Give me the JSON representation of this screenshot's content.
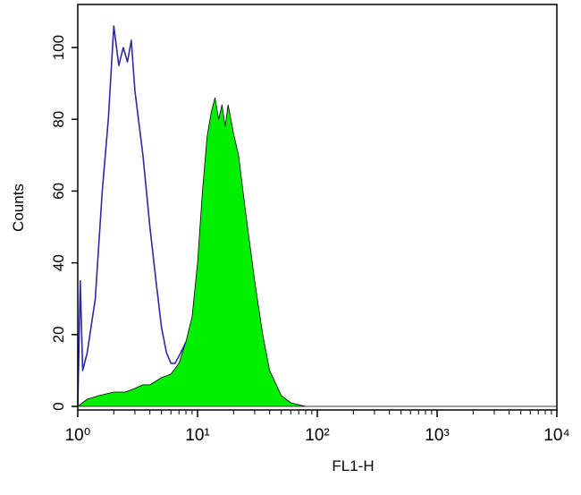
{
  "chart_data": {
    "type": "area",
    "x_label": "FL1-H",
    "y_label": "Counts",
    "log_x": true,
    "xlim": [
      1,
      10000
    ],
    "xticks": [
      {
        "value": 1,
        "label": "10⁰"
      },
      {
        "value": 10,
        "label": "10¹"
      },
      {
        "value": 100,
        "label": "10²"
      },
      {
        "value": 1000,
        "label": "10³"
      },
      {
        "value": 10000,
        "label": "10⁴"
      }
    ],
    "ylim": [
      -1,
      112
    ],
    "yticks": [
      0,
      20,
      40,
      60,
      80,
      100
    ],
    "series": [
      {
        "color": "#2b2ba6",
        "fill": false,
        "x": [
          1,
          1.05,
          1.1,
          1.2,
          1.4,
          1.6,
          1.8,
          2.0,
          2.2,
          2.4,
          2.6,
          2.8,
          3.0,
          3.5,
          4.0,
          4.5,
          5.0,
          5.5,
          6.0,
          6.5,
          7,
          7.5,
          8
        ],
        "values": [
          0,
          35,
          10,
          15,
          30,
          60,
          80,
          106,
          95,
          100,
          96,
          102,
          88,
          70,
          50,
          35,
          22,
          15,
          12,
          12,
          14,
          16,
          18
        ]
      },
      {
        "color": "#00ee00",
        "fill": true,
        "x": [
          1,
          1.2,
          1.5,
          2,
          2.5,
          3,
          3.5,
          4,
          5,
          6,
          7,
          8,
          9,
          10,
          11,
          12,
          13,
          14,
          15,
          16,
          17,
          18,
          20,
          22,
          25,
          30,
          35,
          40,
          50,
          60,
          80,
          100,
          10000
        ],
        "values": [
          0,
          2,
          3,
          4,
          4,
          5,
          6,
          6,
          8,
          9,
          12,
          18,
          25,
          40,
          60,
          75,
          82,
          86,
          80,
          84,
          78,
          84,
          76,
          70,
          55,
          35,
          20,
          10,
          3,
          1,
          0,
          0,
          0
        ]
      }
    ]
  }
}
